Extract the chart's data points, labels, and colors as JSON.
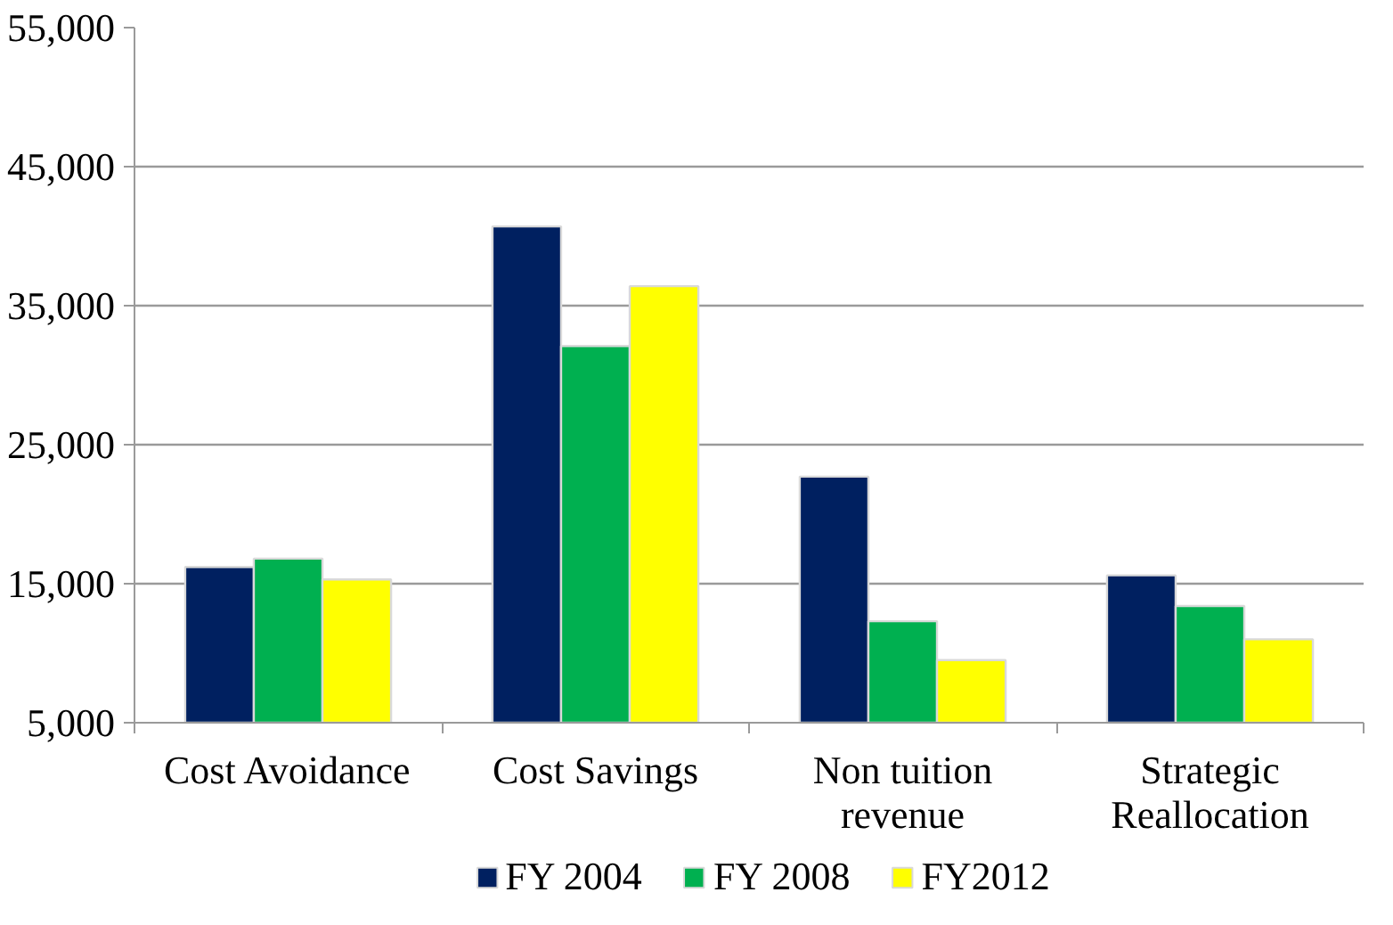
{
  "chart_data": {
    "type": "bar",
    "categories": [
      "Cost Avoidance",
      "Cost Savings",
      "Non tuition\nrevenue",
      "Strategic\nReallocation"
    ],
    "series": [
      {
        "name": "FY 2004",
        "color": "#002060",
        "values": [
          16200,
          40700,
          22700,
          15600
        ]
      },
      {
        "name": "FY 2008",
        "color": "#00b050",
        "values": [
          16800,
          32100,
          12300,
          13400
        ]
      },
      {
        "name": "FY2012",
        "color": "#ffff00",
        "values": [
          15300,
          36400,
          9500,
          11000
        ]
      }
    ],
    "ylim": [
      5000,
      55000
    ],
    "yticks": [
      {
        "value": 5000,
        "label": "5,000"
      },
      {
        "value": 15000,
        "label": "15,000"
      },
      {
        "value": 25000,
        "label": "25,000"
      },
      {
        "value": 35000,
        "label": "35,000"
      },
      {
        "value": 45000,
        "label": "45,000"
      },
      {
        "value": 55000,
        "label": "55,000"
      }
    ],
    "grid": "y",
    "legend": "bottom"
  }
}
